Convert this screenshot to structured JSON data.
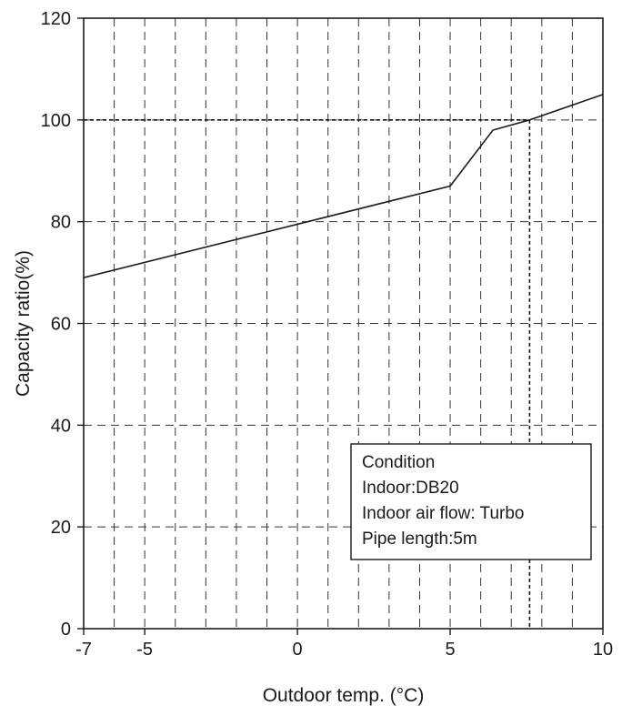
{
  "chart_data": {
    "type": "line",
    "xlabel": "Outdoor temp. (°C)",
    "ylabel": "Capacity ratio(%)",
    "xlim": [
      -7,
      10
    ],
    "ylim": [
      0,
      120
    ],
    "x_ticks": [
      {
        "value": -7,
        "label": "-7"
      },
      {
        "value": -5,
        "label": "-5"
      },
      {
        "value": 0,
        "label": "0"
      },
      {
        "value": 5,
        "label": "5"
      },
      {
        "value": 10,
        "label": "10"
      }
    ],
    "y_ticks": [
      {
        "value": 0,
        "label": "0"
      },
      {
        "value": 20,
        "label": "20"
      },
      {
        "value": 40,
        "label": "40"
      },
      {
        "value": 60,
        "label": "60"
      },
      {
        "value": 80,
        "label": "80"
      },
      {
        "value": 100,
        "label": "100"
      },
      {
        "value": 120,
        "label": "120"
      }
    ],
    "x_gridlines": [
      -6,
      -5,
      -4,
      -3,
      -2,
      -1,
      0,
      1,
      2,
      3,
      4,
      5,
      6,
      7,
      8,
      9
    ],
    "y_gridlines": [
      20,
      40,
      60,
      80,
      100
    ],
    "grid": true,
    "series": [
      {
        "x": [
          -7,
          5,
          6.4,
          7.6,
          10
        ],
        "y": [
          69,
          87,
          98,
          100,
          105
        ]
      }
    ],
    "reference_point": {
      "x": 7.6,
      "y": 100
    },
    "legend_box": {
      "placement": "bottom-right",
      "lines": [
        "Condition",
        "Indoor:DB20",
        "Indoor air flow: Turbo",
        "Pipe length:5m"
      ]
    }
  },
  "colors": {
    "line": "#1a1a1a",
    "grid": "#333333",
    "background": "#ffffff"
  }
}
